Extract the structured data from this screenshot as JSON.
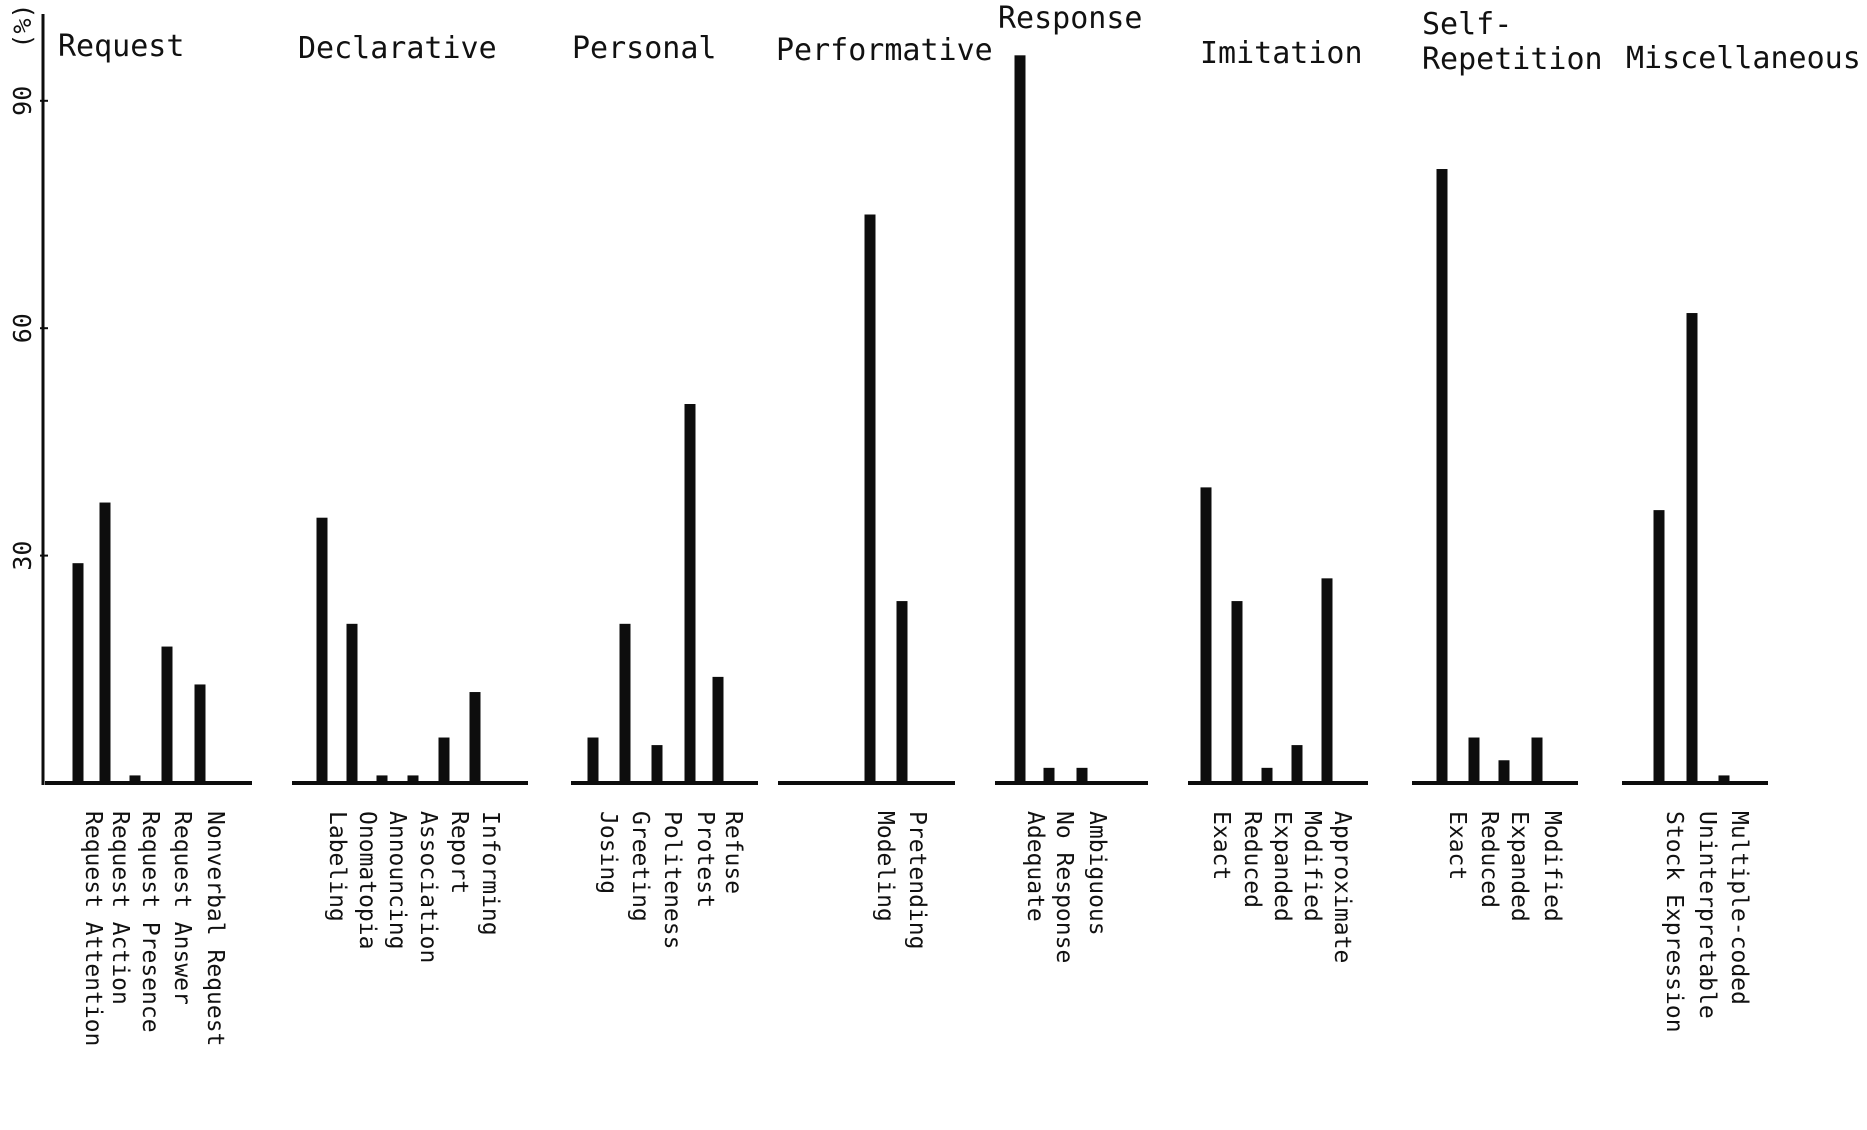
{
  "chart_data": {
    "type": "bar",
    "ylabel": "(%)",
    "y_ticks": [
      30,
      60,
      90
    ],
    "ylim": [
      0,
      95
    ],
    "grid": false,
    "groups": [
      {
        "name": "Request",
        "categories": [
          "Request Attention",
          "Request Action",
          "Request Presence",
          "Request Answer",
          "Nonverbal Request"
        ],
        "values": [
          29,
          37,
          1,
          18,
          13
        ]
      },
      {
        "name": "Declarative",
        "categories": [
          "Labeling",
          "Onomatopia",
          "Announcing",
          "Association",
          "Report",
          "Informing"
        ],
        "values": [
          35,
          21,
          1,
          1,
          6,
          12
        ]
      },
      {
        "name": "Personal",
        "categories": [
          "Josing",
          "Greeting",
          "Politeness",
          "Protest",
          "Refuse"
        ],
        "values": [
          6,
          21,
          5,
          50,
          14
        ]
      },
      {
        "name": "Performative",
        "categories": [
          "Modeling",
          "Pretending"
        ],
        "values": [
          75,
          24
        ]
      },
      {
        "name": "Response",
        "categories": [
          "Adequate",
          "No Response",
          "Ambiguous"
        ],
        "values": [
          96,
          2,
          2
        ]
      },
      {
        "name": "Imitation",
        "categories": [
          "Exact",
          "Reduced",
          "Expanded",
          "Modified",
          "Approximate"
        ],
        "values": [
          39,
          24,
          2,
          5,
          27
        ]
      },
      {
        "name": "Self-Repetition",
        "categories": [
          "Exact",
          "Reduced",
          "Expanded",
          "Modified"
        ],
        "values": [
          81,
          6,
          3,
          6
        ]
      },
      {
        "name": "Miscellaneous",
        "categories": [
          "Stock Expression",
          "Uninterpretable",
          "Multiple-coded"
        ],
        "values": [
          36,
          62,
          1
        ]
      }
    ]
  }
}
